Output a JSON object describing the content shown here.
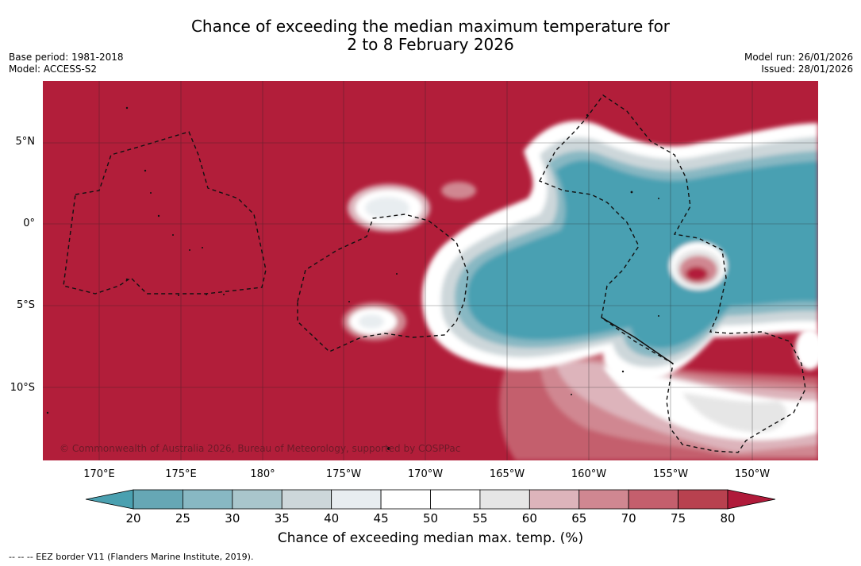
{
  "title": {
    "line1": "Chance of exceeding the median maximum temperature for",
    "line2": "2 to 8 February 2026"
  },
  "meta": {
    "base_period": "Base period: 1981-2018",
    "model": "Model: ACCESS-S2",
    "model_run": "Model run: 26/01/2026",
    "issued": "Issued: 28/01/2026"
  },
  "map": {
    "lat_labels": [
      "5°N",
      "0°",
      "5°S",
      "10°S"
    ],
    "lon_labels": [
      "170°E",
      "175°E",
      "180°",
      "175°W",
      "170°W",
      "165°W",
      "160°W",
      "155°W",
      "150°W"
    ],
    "copyright": "© Commonwealth of Australia 2026, Bureau of Meteorology, supported by COSPPac"
  },
  "colorbar": {
    "ticks": [
      "20",
      "25",
      "30",
      "35",
      "40",
      "45",
      "50",
      "55",
      "60",
      "65",
      "70",
      "75",
      "80"
    ],
    "label": "Chance of exceeding median max. temp. (%)"
  },
  "colors": {
    "warm": "#b21e3a",
    "cool": "#49a0b2",
    "bands": [
      "#66a7b5",
      "#88b8c3",
      "#a9c6cc",
      "#cdd7da",
      "#e8edf0",
      "#ffffff",
      "#ffffff",
      "#e6e6e6",
      "#ddb4bb",
      "#d08791",
      "#c45f6d",
      "#b8414f"
    ],
    "under": "#4aa0b0",
    "over": "#b01a3a"
  },
  "footer": {
    "legend": "--  --  -- EEZ border V11 (Flanders Marine Institute, 2019)."
  }
}
